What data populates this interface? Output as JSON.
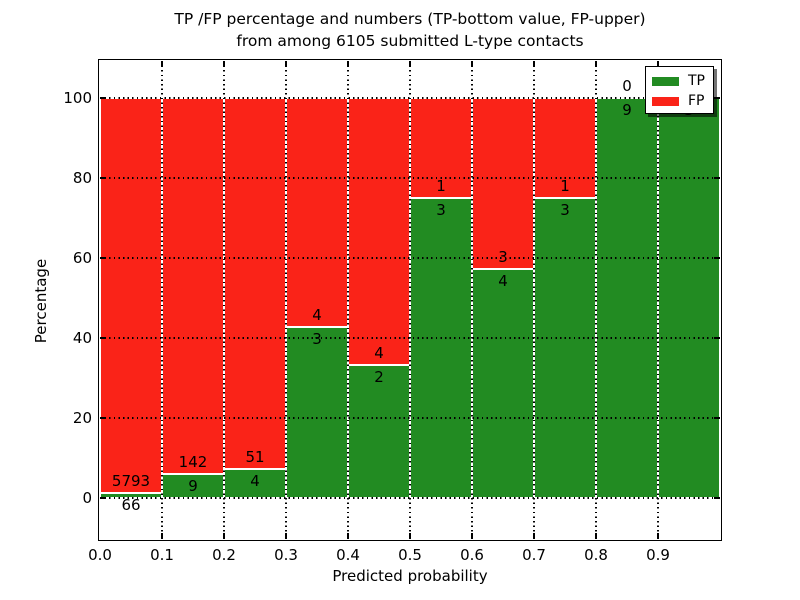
{
  "figure": {
    "title_line1": "TP /FP percentage and numbers (TP-bottom value, FP-upper)",
    "title_line2": "from among 6105 submitted L-type contacts"
  },
  "axes": {
    "xlabel": "Predicted probability",
    "ylabel": "Percentage",
    "x_tick_labels": [
      "0.0",
      "0.1",
      "0.2",
      "0.3",
      "0.4",
      "0.5",
      "0.6",
      "0.7",
      "0.8",
      "0.9"
    ],
    "y_tick_labels": [
      "0",
      "20",
      "40",
      "60",
      "80",
      "100"
    ],
    "grid": "dotted"
  },
  "legend": {
    "position": "upper-right",
    "items": [
      {
        "label": "TP",
        "color": "#228b22"
      },
      {
        "label": "FP",
        "color": "#fa2318"
      }
    ]
  },
  "chart_data": {
    "type": "bar",
    "subtype": "stacked-normalized-percent",
    "title": "TP /FP percentage and numbers (TP-bottom value, FP-upper) from among 6105 submitted L-type contacts",
    "xlabel": "Predicted probability",
    "ylabel": "Percentage",
    "total_submitted": 6105,
    "bin_edges": [
      0.0,
      0.1,
      0.2,
      0.3,
      0.4,
      0.5,
      0.6,
      0.7,
      0.8,
      0.9,
      1.0
    ],
    "x_ticks": [
      0.0,
      0.1,
      0.2,
      0.3,
      0.4,
      0.5,
      0.6,
      0.7,
      0.8,
      0.9
    ],
    "y_ticks": [
      0,
      20,
      40,
      60,
      80,
      100
    ],
    "xlim": [
      0.0,
      1.0
    ],
    "ylim": [
      -11,
      109
    ],
    "legend_position": "upper-right",
    "grid": true,
    "series": [
      {
        "name": "TP",
        "stack_position": "bottom",
        "color": "#228b22",
        "counts": [
          66,
          9,
          4,
          3,
          2,
          3,
          4,
          3,
          9,
          3
        ]
      },
      {
        "name": "FP",
        "stack_position": "top",
        "color": "#fa2318",
        "counts": [
          5793,
          142,
          51,
          4,
          4,
          1,
          3,
          1,
          0,
          0
        ]
      }
    ],
    "bar_label_rule": "TP count printed below the TP/FP boundary, FP count printed above it"
  }
}
